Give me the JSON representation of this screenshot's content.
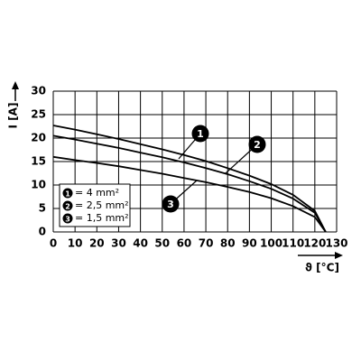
{
  "chart_data": {
    "type": "line",
    "x_label": "ϑ [°C]",
    "y_label": "I [A]",
    "x": [
      0,
      10,
      20,
      30,
      40,
      50,
      60,
      70,
      80,
      90,
      100,
      110,
      120,
      125
    ],
    "xlim": [
      0,
      130
    ],
    "xticks": [
      0,
      10,
      20,
      30,
      40,
      50,
      60,
      70,
      80,
      90,
      100,
      110,
      120,
      130
    ],
    "ylim": [
      0,
      30
    ],
    "yticks": [
      0,
      5,
      10,
      15,
      20,
      25,
      30
    ],
    "grid": true,
    "series": [
      {
        "name": "= 4 mm²",
        "label": "1",
        "color": "#000000",
        "values": [
          22.7,
          21.8,
          20.8,
          19.8,
          18.7,
          17.6,
          16.4,
          15.1,
          13.6,
          12.0,
          10.2,
          7.9,
          4.5,
          0
        ]
      },
      {
        "name": "= 2,5 mm²",
        "label": "2",
        "color": "#000000",
        "values": [
          20.5,
          19.7,
          18.8,
          17.9,
          16.9,
          15.9,
          14.8,
          13.6,
          12.3,
          10.8,
          9.2,
          7.1,
          4.1,
          0
        ]
      },
      {
        "name": "= 1,5 mm²",
        "label": "3",
        "color": "#000000",
        "values": [
          16,
          15.3,
          14.7,
          14.0,
          13.2,
          12.4,
          11.5,
          10.6,
          9.6,
          8.5,
          7.2,
          5.5,
          3.2,
          0
        ]
      }
    ]
  }
}
